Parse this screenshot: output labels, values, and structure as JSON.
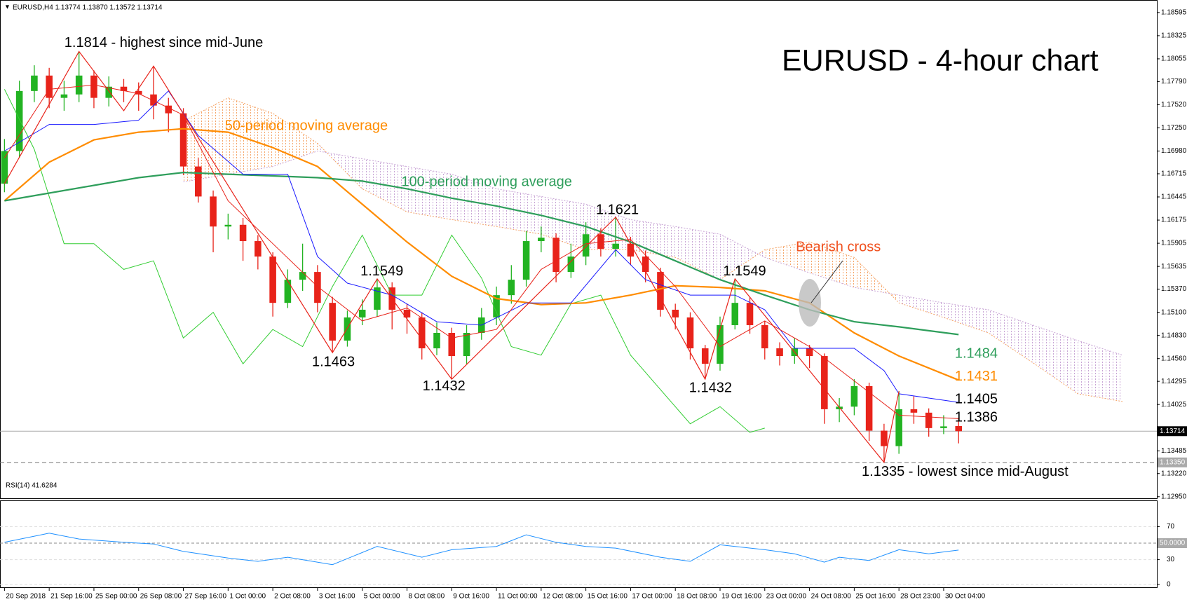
{
  "chart_data": [
    {
      "type": "candlestick",
      "title": "EURUSD - 4-hour chart",
      "subtitle": "EURUSD,H4  1.13774 1.13870 1.13572 1.13714",
      "xlim": [
        -0.3,
        77.3
      ],
      "ylim": [
        1.1294,
        1.187
      ],
      "xticks": [
        {
          "value": 0,
          "label": "20 Sep 2018"
        },
        {
          "value": 3,
          "label": "21 Sep 16:00"
        },
        {
          "value": 6,
          "label": "25 Sep 00:00"
        },
        {
          "value": 9,
          "label": "26 Sep 08:00"
        },
        {
          "value": 12,
          "label": "27 Sep 16:00"
        },
        {
          "value": 15,
          "label": "1 Oct 00:00"
        },
        {
          "value": 18,
          "label": "2 Oct 08:00"
        },
        {
          "value": 21,
          "label": "3 Oct 16:00"
        },
        {
          "value": 24,
          "label": "5 Oct 00:00"
        },
        {
          "value": 27,
          "label": "8 Oct 08:00"
        },
        {
          "value": 30,
          "label": "9 Oct 16:00"
        },
        {
          "value": 33,
          "label": "11 Oct 00:00"
        },
        {
          "value": 36,
          "label": "12 Oct 08:00"
        },
        {
          "value": 39,
          "label": "15 Oct 16:00"
        },
        {
          "value": 42,
          "label": "17 Oct 00:00"
        },
        {
          "value": 45,
          "label": "18 Oct 08:00"
        },
        {
          "value": 48,
          "label": "19 Oct 16:00"
        },
        {
          "value": 51,
          "label": "23 Oct 00:00"
        },
        {
          "value": 54,
          "label": "24 Oct 08:00"
        },
        {
          "value": 57,
          "label": "25 Oct 16:00"
        },
        {
          "value": 60,
          "label": "28 Oct 23:00"
        },
        {
          "value": 63,
          "label": "30 Oct 04:00"
        }
      ],
      "yticks": [
        1.18595,
        1.18325,
        1.18055,
        {
          "value": 1.1779,
          "label": "1.17790"
        },
        {
          "value": 1.1752,
          "label": "1.17520"
        },
        {
          "value": 1.1725,
          "label": "1.17250"
        },
        {
          "value": 1.1698,
          "label": "1.16980"
        },
        1.16715,
        1.16445,
        1.16175,
        1.15905,
        1.15635,
        {
          "value": 1.1537,
          "label": "1.15370"
        },
        {
          "value": 1.151,
          "label": "1.15100"
        },
        {
          "value": 1.1483,
          "label": "1.14830"
        },
        {
          "value": 1.1456,
          "label": "1.14560"
        },
        1.14295,
        1.14025,
        1.13485,
        {
          "value": 1.1322,
          "label": "1.13220"
        },
        {
          "value": 1.1295,
          "label": "1.12950"
        }
      ],
      "candles": {
        "up_color": "#22b322",
        "down_color": "#e8231a",
        "open": [
          1.166,
          1.1698,
          1.1768,
          1.1786,
          1.176,
          1.1764,
          1.1786,
          1.176,
          1.1773,
          1.1768,
          1.1764,
          1.1751,
          1.1742,
          1.168,
          1.1645,
          1.161,
          1.1612,
          1.1593,
          1.1575,
          1.1521,
          1.1548,
          1.1557,
          1.1521,
          1.1477,
          1.1504,
          1.1513,
          1.1539,
          1.1513,
          1.1504,
          1.1468,
          1.1486,
          1.1459,
          1.1486,
          1.1504,
          1.153,
          1.1548,
          1.1593,
          1.1597,
          1.1557,
          1.1575,
          1.1601,
          1.1584,
          1.159,
          1.1575,
          1.1557,
          1.1513,
          1.1504,
          1.1468,
          1.145,
          1.1495,
          1.1521,
          1.1495,
          1.1468,
          1.1459,
          1.1468,
          1.1459,
          1.1397,
          1.14,
          1.1424,
          1.1372,
          1.1354,
          1.1397,
          1.1393,
          1.1375,
          1.13774
        ],
        "high": [
          1.1712,
          1.178,
          1.1798,
          1.1795,
          1.178,
          1.1814,
          1.1792,
          1.1785,
          1.1782,
          1.1778,
          1.1797,
          1.176,
          1.1748,
          1.169,
          1.1652,
          1.1625,
          1.162,
          1.16,
          1.158,
          1.156,
          1.159,
          1.1565,
          1.1528,
          1.1512,
          1.1525,
          1.1549,
          1.1545,
          1.152,
          1.151,
          1.1498,
          1.1492,
          1.1495,
          1.1515,
          1.154,
          1.1565,
          1.1605,
          1.161,
          1.1602,
          1.159,
          1.1615,
          1.1608,
          1.1621,
          1.1598,
          1.1582,
          1.1562,
          1.152,
          1.151,
          1.1472,
          1.1505,
          1.1549,
          1.1528,
          1.15,
          1.1475,
          1.148,
          1.1472,
          1.1462,
          1.141,
          1.1432,
          1.1428,
          1.138,
          1.1418,
          1.1412,
          1.1398,
          1.139,
          1.1387
        ],
        "low": [
          1.165,
          1.169,
          1.1755,
          1.1748,
          1.1745,
          1.1755,
          1.1748,
          1.175,
          1.1755,
          1.1745,
          1.1735,
          1.172,
          1.167,
          1.1638,
          1.158,
          1.1595,
          1.157,
          1.156,
          1.1505,
          1.1515,
          1.1535,
          1.151,
          1.1463,
          1.147,
          1.1495,
          1.1505,
          1.149,
          1.1485,
          1.1455,
          1.146,
          1.1432,
          1.145,
          1.1478,
          1.1495,
          1.152,
          1.154,
          1.158,
          1.1545,
          1.155,
          1.1565,
          1.1575,
          1.1575,
          1.1565,
          1.1545,
          1.1505,
          1.149,
          1.1455,
          1.1432,
          1.1442,
          1.149,
          1.1485,
          1.1455,
          1.1448,
          1.145,
          1.1445,
          1.138,
          1.1382,
          1.139,
          1.136,
          1.1335,
          1.1345,
          1.138,
          1.1365,
          1.1368,
          1.13572
        ],
        "close": [
          1.1698,
          1.1768,
          1.1786,
          1.176,
          1.1764,
          1.1786,
          1.176,
          1.1773,
          1.1768,
          1.1764,
          1.1751,
          1.1742,
          1.168,
          1.1645,
          1.161,
          1.1612,
          1.1593,
          1.1575,
          1.1521,
          1.1548,
          1.1557,
          1.1521,
          1.1477,
          1.1504,
          1.1513,
          1.1539,
          1.1513,
          1.1504,
          1.1468,
          1.1486,
          1.1459,
          1.1486,
          1.1504,
          1.153,
          1.1548,
          1.1593,
          1.1597,
          1.1557,
          1.1575,
          1.1601,
          1.1584,
          1.159,
          1.1575,
          1.1557,
          1.1513,
          1.1504,
          1.1468,
          1.145,
          1.1495,
          1.1521,
          1.1495,
          1.1468,
          1.1459,
          1.1468,
          1.1459,
          1.1397,
          1.14,
          1.1424,
          1.1372,
          1.1354,
          1.1397,
          1.1393,
          1.1375,
          1.1377,
          1.13714
        ]
      },
      "cloud": {
        "color_a": "#f5a66a",
        "color_b": "#c9a6d6",
        "x": [
          12,
          15,
          18,
          21,
          24,
          27,
          30,
          33,
          36,
          39,
          42,
          45,
          48,
          51,
          54,
          57,
          60,
          63,
          66,
          69,
          72,
          75
        ],
        "span_a": [
          1.1733,
          1.176,
          1.1742,
          1.1707,
          1.1654,
          1.1627,
          1.1618,
          1.161,
          1.1601,
          1.1583,
          1.1583,
          1.1574,
          1.1548,
          1.1583,
          1.1592,
          1.1574,
          1.1521,
          1.1504,
          1.1486,
          1.1451,
          1.1415,
          1.1406
        ],
        "span_b": [
          1.1662,
          1.1671,
          1.168,
          1.1698,
          1.1689,
          1.168,
          1.1671,
          1.1654,
          1.1645,
          1.1636,
          1.1618,
          1.161,
          1.1601,
          1.1574,
          1.1556,
          1.1539,
          1.153,
          1.1521,
          1.1513,
          1.1495,
          1.1477,
          1.146
        ]
      },
      "lines": [
        {
          "color": "#32cd32",
          "width": 1,
          "x": [
            0,
            2,
            4,
            6,
            8,
            10,
            12,
            14,
            16,
            18,
            20,
            22,
            24,
            26,
            28,
            30,
            32,
            34,
            36,
            38,
            40,
            42,
            44,
            46,
            48,
            50,
            51
          ],
          "values": [
            1.177,
            1.17,
            1.159,
            1.159,
            1.156,
            1.157,
            1.148,
            1.151,
            1.145,
            1.149,
            1.147,
            1.154,
            1.16,
            1.153,
            1.153,
            1.16,
            1.155,
            1.147,
            1.146,
            1.152,
            1.153,
            1.146,
            1.142,
            1.138,
            1.14,
            1.137,
            1.1375
          ]
        },
        {
          "color": "#ff8c00",
          "width": 2.2,
          "x": [
            0,
            3,
            6,
            9,
            12,
            15,
            18,
            21,
            24,
            27,
            30,
            33,
            36,
            39,
            42,
            45,
            48,
            51,
            54,
            57,
            60,
            64
          ],
          "values": [
            1.164,
            1.1685,
            1.1711,
            1.172,
            1.1724,
            1.172,
            1.1702,
            1.168,
            1.1636,
            1.1592,
            1.1552,
            1.1526,
            1.1519,
            1.1521,
            1.153,
            1.1541,
            1.1539,
            1.1535,
            1.1521,
            1.1486,
            1.1459,
            1.1431
          ]
        },
        {
          "color": "#2e9e5b",
          "width": 2.2,
          "x": [
            0,
            3,
            6,
            9,
            12,
            15,
            18,
            21,
            24,
            27,
            30,
            33,
            36,
            39,
            42,
            45,
            48,
            51,
            54,
            57,
            60,
            64
          ],
          "values": [
            1.164,
            1.1649,
            1.1658,
            1.1667,
            1.1673,
            1.1671,
            1.1669,
            1.1667,
            1.1663,
            1.1654,
            1.1643,
            1.1634,
            1.1623,
            1.161,
            1.1592,
            1.157,
            1.1548,
            1.153,
            1.1513,
            1.1499,
            1.1493,
            1.1484
          ]
        },
        {
          "color": "#1a1aff",
          "width": 1,
          "x": [
            0,
            3,
            6,
            9,
            11,
            13,
            16,
            19,
            21,
            23,
            26,
            29,
            32,
            35,
            38,
            41,
            43,
            46,
            49,
            51,
            53,
            57,
            59,
            60,
            64
          ],
          "values": [
            1.1698,
            1.1729,
            1.1729,
            1.1734,
            1.1768,
            1.1716,
            1.1671,
            1.1671,
            1.1575,
            1.1544,
            1.153,
            1.1499,
            1.1495,
            1.1521,
            1.1521,
            1.1583,
            1.1548,
            1.153,
            1.153,
            1.1513,
            1.1468,
            1.1468,
            1.1442,
            1.1415,
            1.1405
          ]
        },
        {
          "color": "#e8231a",
          "width": 1,
          "x": [
            0,
            3,
            6,
            9,
            12,
            15,
            18,
            21,
            24,
            27,
            30,
            33,
            36,
            39,
            42,
            45,
            48,
            51,
            54,
            57,
            60,
            64
          ],
          "values": [
            1.169,
            1.177,
            1.1775,
            1.1765,
            1.174,
            1.164,
            1.159,
            1.154,
            1.15,
            1.1515,
            1.148,
            1.149,
            1.156,
            1.159,
            1.1595,
            1.154,
            1.147,
            1.15,
            1.147,
            1.143,
            1.139,
            1.1386
          ]
        },
        {
          "color": "#e8231a",
          "width": 1.2,
          "x": [
            0,
            5,
            8,
            10,
            22,
            25,
            30,
            41,
            47,
            49,
            59,
            60
          ],
          "values": [
            1.166,
            1.1814,
            1.1745,
            1.1797,
            1.1463,
            1.1549,
            1.1432,
            1.1621,
            1.1432,
            1.1549,
            1.1335,
            1.1418
          ]
        }
      ],
      "last_price": 1.13714,
      "support": {
        "value": 1.1335,
        "label": "1.13350"
      },
      "annotations": [
        "1.1814 - highest since mid-June",
        "50-period moving average",
        "100-period moving average",
        "1.1463",
        "1.1549",
        "1.1432",
        "1.1621",
        "1.1432",
        "1.1549",
        "Bearish cross",
        "1.1484",
        "1.1431",
        "1.1405",
        "1.1386",
        "1.1335  - lowest since mid-August"
      ]
    },
    {
      "type": "line",
      "title": "RSI(14) 41.6284",
      "color": "#1e90ff",
      "xlim": [
        -0.3,
        77.3
      ],
      "ylim": [
        0,
        100
      ],
      "yticks": [
        0,
        30,
        {
          "value": 50,
          "label": "50.0000"
        },
        70
      ],
      "x": [
        0,
        3,
        5,
        8,
        10,
        12,
        15,
        17,
        19,
        22,
        25,
        28,
        30,
        33,
        35,
        37,
        39,
        41,
        44,
        46,
        48,
        51,
        53,
        55,
        56,
        58,
        60,
        62,
        64
      ],
      "values": [
        51,
        62,
        55,
        51,
        49,
        40,
        32,
        28,
        33,
        24,
        46,
        33,
        42,
        46,
        60,
        51,
        46,
        44,
        33,
        28,
        48,
        42,
        37,
        27,
        33,
        29,
        42,
        37,
        41.6284
      ]
    }
  ]
}
